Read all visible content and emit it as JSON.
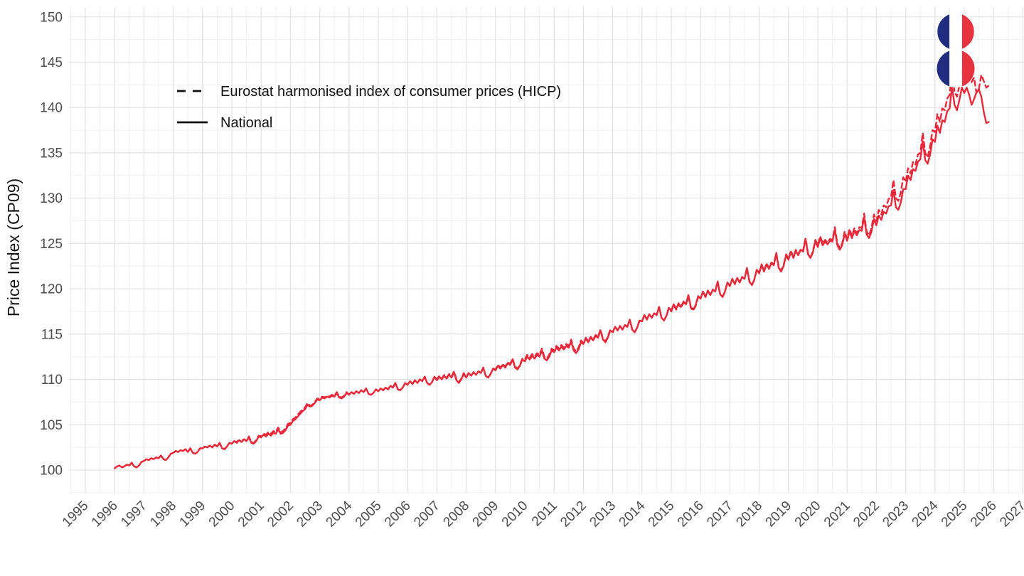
{
  "figure": {
    "y_axis": {
      "title": "Price Index (CP09)",
      "ticks": [
        100,
        105,
        110,
        115,
        120,
        125,
        130,
        135,
        140,
        145,
        150
      ]
    },
    "x_axis": {
      "ticks": [
        1995,
        1996,
        1997,
        1998,
        1999,
        2000,
        2001,
        2002,
        2003,
        2004,
        2005,
        2006,
        2007,
        2008,
        2009,
        2010,
        2011,
        2012,
        2013,
        2014,
        2015,
        2016,
        2017,
        2018,
        2019,
        2020,
        2021,
        2022,
        2023,
        2024,
        2025,
        2026,
        2027
      ]
    },
    "legend": [
      {
        "label": "Eurostat harmonised index of consumer prices (HICP)",
        "style": "dashed"
      },
      {
        "label": "National",
        "style": "solid"
      }
    ],
    "colors": {
      "line_red": "#e8293a",
      "grid_major": "#e4e4e4",
      "grid_minor": "#f0f0f0",
      "tick_label": "#4d4d4d",
      "text": "#111111",
      "logo_blue": "#212d80",
      "logo_white": "#ffffff",
      "logo_red": "#e8333f",
      "background": "#ffffff"
    },
    "logo": "double-roundel-french-flag"
  },
  "chart_data": {
    "type": "line",
    "title": "",
    "xlabel": "",
    "ylabel": "Price Index (CP09)",
    "x_unit": "monthly",
    "start": "1996-01",
    "xlim": [
      1994.5,
      2027.5
    ],
    "ylim": [
      97.5,
      150
    ],
    "grid": true,
    "legend_position": "top-left-inside",
    "series": [
      {
        "name": "Eurostat harmonised index of consumer prices (HICP)",
        "line_style": "dashed",
        "color": "#e8293a",
        "values_by_year": {
          "1996": [
            100.2,
            100.4,
            100.5,
            100.3,
            100.4,
            100.6,
            100.5,
            100.8,
            100.4,
            100.3,
            100.5,
            100.9
          ],
          "1997": [
            101.0,
            101.2,
            101.1,
            101.3,
            101.2,
            101.4,
            101.3,
            101.6,
            101.2,
            101.1,
            101.4,
            101.8
          ],
          "1998": [
            101.9,
            102.1,
            102.0,
            102.2,
            102.1,
            102.3,
            102.0,
            102.4,
            101.9,
            101.8,
            102.0,
            102.4
          ],
          "1999": [
            102.4,
            102.6,
            102.5,
            102.7,
            102.5,
            102.8,
            102.6,
            103.0,
            102.4,
            102.3,
            102.6,
            103.0
          ],
          "2000": [
            102.9,
            103.2,
            103.1,
            103.3,
            103.2,
            103.4,
            103.2,
            103.7,
            103.1,
            103.0,
            103.3,
            103.8
          ],
          "2001": [
            103.7,
            104.0,
            103.9,
            104.2,
            104.0,
            104.3,
            104.2,
            104.7,
            104.2,
            104.3,
            104.6,
            105.1
          ],
          "2002": [
            105.2,
            105.6,
            105.8,
            106.1,
            106.4,
            106.7,
            106.9,
            107.4,
            107.1,
            107.2,
            107.5,
            107.9
          ],
          "2003": [
            107.8,
            108.1,
            108.0,
            108.2,
            108.1,
            108.3,
            108.2,
            108.6,
            108.1,
            108.0,
            108.2,
            108.6
          ],
          "2004": [
            108.3,
            108.6,
            108.4,
            108.7,
            108.5,
            108.8,
            108.6,
            109.0,
            108.4,
            108.3,
            108.5,
            108.9
          ],
          "2005": [
            108.7,
            109.0,
            108.8,
            109.1,
            108.9,
            109.3,
            109.1,
            109.6,
            108.9,
            108.8,
            109.1,
            109.6
          ],
          "2006": [
            109.4,
            109.8,
            109.5,
            109.9,
            109.6,
            110.0,
            109.8,
            110.3,
            109.6,
            109.4,
            109.7,
            110.3
          ],
          "2007": [
            110.0,
            110.4,
            110.1,
            110.5,
            110.2,
            110.6,
            110.3,
            110.9,
            110.0,
            109.7,
            110.1,
            110.7
          ],
          "2008": [
            110.2,
            110.7,
            110.4,
            110.8,
            110.5,
            110.9,
            110.7,
            111.3,
            110.4,
            110.2,
            110.6,
            111.2
          ],
          "2009": [
            111.1,
            111.6,
            111.3,
            111.7,
            111.4,
            111.9,
            111.7,
            112.3,
            111.4,
            111.2,
            111.6,
            112.3
          ],
          "2010": [
            112.2,
            112.7,
            112.4,
            112.8,
            112.5,
            112.9,
            112.7,
            113.4,
            112.5,
            112.3,
            112.7,
            113.4
          ],
          "2011": [
            113.2,
            113.7,
            113.4,
            113.8,
            113.5,
            113.9,
            113.7,
            114.4,
            113.4,
            113.1,
            113.5,
            114.3
          ],
          "2012": [
            114.0,
            114.6,
            114.2,
            114.7,
            114.4,
            114.9,
            114.7,
            115.5,
            114.5,
            114.2,
            114.7,
            115.5
          ],
          "2013": [
            115.2,
            115.8,
            115.4,
            115.9,
            115.5,
            116.0,
            115.8,
            116.6,
            115.5,
            115.2,
            115.7,
            116.5
          ],
          "2014": [
            116.4,
            117.1,
            116.6,
            117.2,
            116.8,
            117.3,
            117.1,
            118.0,
            116.8,
            116.5,
            117.0,
            117.9
          ],
          "2015": [
            117.5,
            118.2,
            117.7,
            118.3,
            117.9,
            118.5,
            118.2,
            119.2,
            117.9,
            117.6,
            118.1,
            119.1
          ],
          "2016": [
            118.9,
            119.7,
            119.1,
            119.8,
            119.3,
            119.9,
            119.7,
            120.8,
            119.4,
            119.1,
            119.7,
            120.7
          ],
          "2017": [
            120.3,
            121.1,
            120.5,
            121.2,
            120.7,
            121.3,
            121.1,
            122.3,
            120.8,
            120.4,
            121.0,
            122.1
          ],
          "2018": [
            121.8,
            122.7,
            122.0,
            122.8,
            122.3,
            122.9,
            122.7,
            124.0,
            122.4,
            122.0,
            122.6,
            123.8
          ],
          "2019": [
            123.3,
            124.2,
            123.5,
            124.3,
            123.8,
            124.4,
            124.2,
            125.6,
            123.9,
            123.5,
            124.1,
            125.4
          ],
          "2020": [
            124.8,
            125.8,
            125.0,
            125.4,
            125.1,
            125.5,
            125.4,
            126.8,
            125.0,
            124.5,
            125.0,
            126.3
          ],
          "2021": [
            125.5,
            126.6,
            125.8,
            126.7,
            126.1,
            126.8,
            126.7,
            128.3,
            126.3,
            125.9,
            126.7,
            128.2
          ],
          "2022": [
            127.5,
            128.7,
            128.2,
            129.2,
            129.0,
            129.9,
            130.1,
            132.0,
            130.0,
            129.7,
            130.6,
            132.3
          ],
          "2023": [
            131.8,
            133.3,
            132.7,
            134.0,
            133.7,
            134.8,
            135.0,
            137.2,
            135.0,
            134.5,
            135.7,
            137.5
          ],
          "2024": [
            137.3,
            139.3,
            138.4,
            139.9,
            139.7,
            141.0,
            141.4,
            144.0,
            141.8,
            141.2,
            142.4,
            144.1
          ],
          "2025": [
            143.5,
            145.4,
            144.2,
            142.8,
            143.3,
            141.6,
            142.1,
            143.6,
            142.9,
            142.2,
            142.4,
            142.3
          ]
        }
      },
      {
        "name": "National",
        "line_style": "solid",
        "color": "#e8293a",
        "values_by_year": {
          "1996": [
            100.2,
            100.4,
            100.5,
            100.3,
            100.4,
            100.6,
            100.5,
            100.8,
            100.4,
            100.3,
            100.5,
            100.9
          ],
          "1997": [
            101.0,
            101.2,
            101.1,
            101.3,
            101.2,
            101.4,
            101.3,
            101.6,
            101.2,
            101.1,
            101.4,
            101.8
          ],
          "1998": [
            101.9,
            102.1,
            102.0,
            102.2,
            102.1,
            102.3,
            102.0,
            102.4,
            101.9,
            101.8,
            102.0,
            102.4
          ],
          "1999": [
            102.4,
            102.6,
            102.5,
            102.7,
            102.5,
            102.8,
            102.6,
            103.0,
            102.4,
            102.3,
            102.6,
            103.0
          ],
          "2000": [
            102.9,
            103.2,
            103.0,
            103.3,
            103.1,
            103.4,
            103.2,
            103.6,
            103.0,
            102.9,
            103.2,
            103.7
          ],
          "2001": [
            103.6,
            103.9,
            103.7,
            104.0,
            103.8,
            104.1,
            104.0,
            104.5,
            104.0,
            104.1,
            104.4,
            104.9
          ],
          "2002": [
            105.0,
            105.4,
            105.6,
            105.9,
            106.2,
            106.5,
            106.7,
            107.2,
            107.0,
            107.1,
            107.4,
            107.8
          ],
          "2003": [
            107.7,
            108.0,
            107.9,
            108.1,
            108.0,
            108.2,
            108.1,
            108.5,
            108.0,
            107.9,
            108.1,
            108.5
          ],
          "2004": [
            108.3,
            108.6,
            108.4,
            108.7,
            108.5,
            108.8,
            108.6,
            109.0,
            108.4,
            108.3,
            108.5,
            108.9
          ],
          "2005": [
            108.7,
            109.0,
            108.8,
            109.1,
            108.9,
            109.3,
            109.1,
            109.6,
            108.9,
            108.8,
            109.1,
            109.6
          ],
          "2006": [
            109.4,
            109.8,
            109.5,
            109.9,
            109.6,
            110.0,
            109.8,
            110.3,
            109.6,
            109.4,
            109.7,
            110.3
          ],
          "2007": [
            109.9,
            110.3,
            110.0,
            110.4,
            110.1,
            110.5,
            110.2,
            110.8,
            109.9,
            109.6,
            110.0,
            110.6
          ],
          "2008": [
            110.2,
            110.7,
            110.4,
            110.8,
            110.5,
            110.9,
            110.7,
            111.3,
            110.4,
            110.2,
            110.6,
            111.2
          ],
          "2009": [
            111.0,
            111.5,
            111.2,
            111.6,
            111.3,
            111.8,
            111.6,
            112.2,
            111.3,
            111.1,
            111.5,
            112.2
          ],
          "2010": [
            112.0,
            112.5,
            112.2,
            112.6,
            112.3,
            112.7,
            112.5,
            113.2,
            112.3,
            112.1,
            112.5,
            113.2
          ],
          "2011": [
            113.0,
            113.5,
            113.2,
            113.6,
            113.3,
            113.7,
            113.5,
            114.2,
            113.2,
            112.9,
            113.3,
            114.1
          ],
          "2012": [
            113.9,
            114.5,
            114.1,
            114.6,
            114.3,
            114.8,
            114.6,
            115.4,
            114.4,
            114.1,
            114.6,
            115.4
          ],
          "2013": [
            115.2,
            115.8,
            115.4,
            115.9,
            115.5,
            116.0,
            115.8,
            116.6,
            115.5,
            115.2,
            115.7,
            116.5
          ],
          "2014": [
            116.4,
            117.1,
            116.6,
            117.2,
            116.8,
            117.3,
            117.1,
            118.0,
            116.8,
            116.5,
            117.0,
            117.9
          ],
          "2015": [
            117.6,
            118.3,
            117.8,
            118.4,
            118.0,
            118.6,
            118.3,
            119.3,
            118.0,
            117.7,
            118.2,
            119.2
          ],
          "2016": [
            118.9,
            119.7,
            119.1,
            119.8,
            119.3,
            119.9,
            119.7,
            120.8,
            119.4,
            119.1,
            119.7,
            120.7
          ],
          "2017": [
            120.3,
            121.1,
            120.5,
            121.2,
            120.7,
            121.3,
            121.1,
            122.3,
            120.8,
            120.4,
            121.0,
            122.1
          ],
          "2018": [
            121.7,
            122.6,
            121.9,
            122.7,
            122.2,
            122.8,
            122.6,
            123.9,
            122.3,
            121.9,
            122.5,
            123.7
          ],
          "2019": [
            123.2,
            124.1,
            123.4,
            124.2,
            123.7,
            124.3,
            124.1,
            125.5,
            123.8,
            123.4,
            124.0,
            125.3
          ],
          "2020": [
            124.6,
            125.6,
            124.8,
            125.2,
            124.9,
            125.3,
            125.2,
            126.6,
            124.8,
            124.3,
            124.8,
            126.1
          ],
          "2021": [
            125.3,
            126.3,
            125.6,
            126.4,
            125.9,
            126.5,
            126.4,
            127.9,
            126.0,
            125.6,
            126.3,
            127.7
          ],
          "2022": [
            127.0,
            128.1,
            127.6,
            128.5,
            128.3,
            129.1,
            129.2,
            130.9,
            129.0,
            128.7,
            129.5,
            131.0
          ],
          "2023": [
            131.0,
            132.5,
            132.0,
            133.2,
            133.0,
            134.0,
            134.3,
            136.3,
            134.2,
            133.8,
            134.8,
            136.5
          ],
          "2024": [
            136.2,
            138.0,
            137.2,
            138.6,
            138.4,
            139.6,
            139.9,
            142.3,
            140.3,
            139.7,
            140.8,
            142.2
          ],
          "2025": [
            141.6,
            142.2,
            141.4,
            140.3,
            140.9,
            141.7,
            142.0,
            141.2,
            139.5,
            138.3,
            138.4
          ]
        }
      }
    ]
  }
}
